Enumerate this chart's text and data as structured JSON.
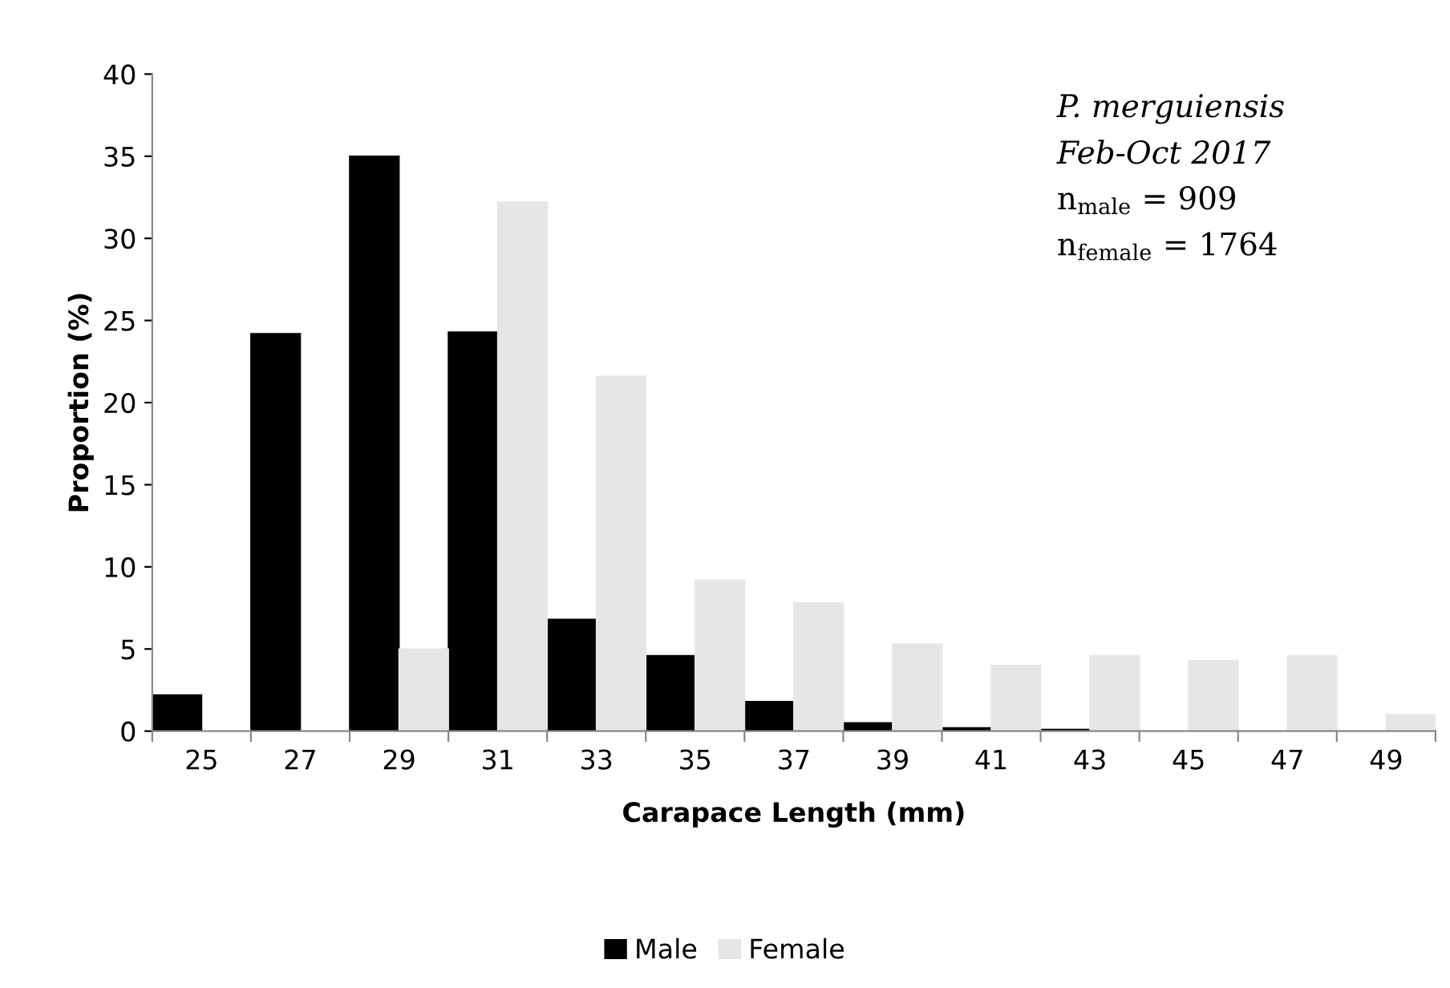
{
  "chart_data": {
    "type": "bar",
    "xlabel": "Carapace Length (mm)",
    "ylabel": "Proportion (%)",
    "categories": [
      "25",
      "27",
      "29",
      "31",
      "33",
      "35",
      "37",
      "39",
      "41",
      "43",
      "45",
      "47",
      "49"
    ],
    "series": [
      {
        "name": "Male",
        "color": "#000000",
        "values": [
          2.2,
          24.2,
          35,
          24.3,
          6.8,
          4.6,
          1.8,
          0.5,
          0.2,
          0.1,
          0,
          0,
          0
        ]
      },
      {
        "name": "Female",
        "color": "#e6e6e6",
        "values": [
          0,
          0,
          5,
          32.2,
          21.6,
          9.2,
          7.8,
          5.3,
          4,
          4.6,
          4.3,
          4.6,
          1
        ]
      }
    ],
    "ylim": [
      0,
      40
    ],
    "yticks": [
      0,
      5,
      10,
      15,
      20,
      25,
      30,
      35,
      40
    ],
    "grid": false,
    "legend": "bottom",
    "annotations": [
      "P. merguiensis",
      "Feb-Oct 2017",
      "n$_{male}$ = 909",
      "n$_{female}$ = 1764"
    ]
  }
}
